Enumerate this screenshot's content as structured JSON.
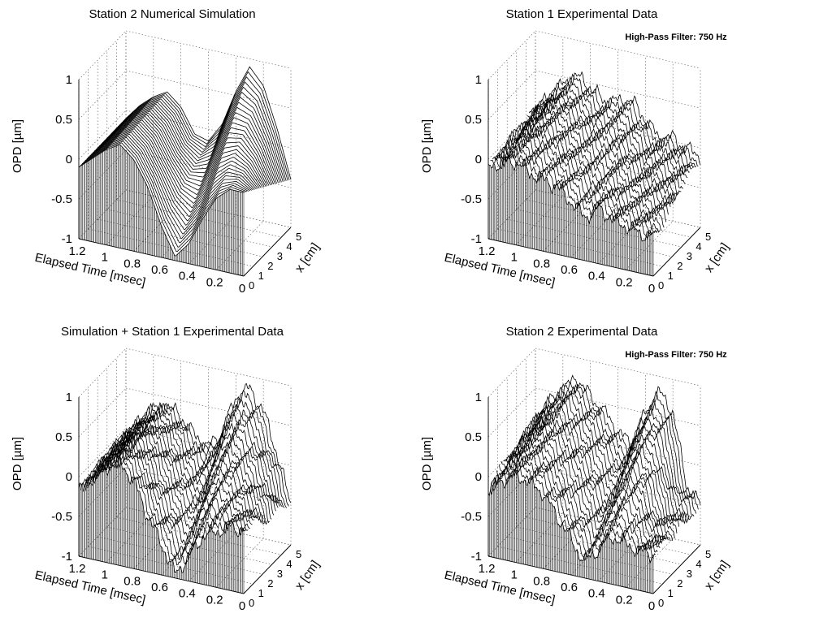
{
  "chart_data": [
    {
      "type": "surface",
      "title": "Station 2 Numerical Simulation",
      "note": "",
      "xlabel": "x [cm]",
      "ylabel": "Elapsed Time [msec]",
      "zlabel": "OPD [µm]",
      "x_ticks": [
        "0",
        "1",
        "2",
        "3",
        "4",
        "5"
      ],
      "t_ticks": [
        "1.2",
        "1",
        "0.8",
        "0.6",
        "0.4",
        "0.2",
        "0"
      ],
      "z_ticks": [
        "-1",
        "-0.5",
        "0",
        "0.5",
        "1"
      ],
      "xlim": [
        0,
        5
      ],
      "tlim": [
        0,
        1.2
      ],
      "zlim": [
        -1,
        1
      ],
      "kind": "simulation",
      "t": [
        1.2,
        1.1,
        1.0,
        0.9,
        0.8,
        0.7,
        0.6,
        0.5,
        0.4,
        0.3,
        0.2,
        0.1,
        0.0
      ],
      "z_front": [
        -0.1,
        0.05,
        0.2,
        0.3,
        0.15,
        -0.15,
        -0.6,
        -0.95,
        -0.75,
        -0.4,
        -0.1,
        0.05,
        0.05
      ],
      "z_back": [
        -0.1,
        0.1,
        0.25,
        0.35,
        0.2,
        -0.1,
        -0.15,
        0.1,
        0.55,
        0.9,
        0.7,
        0.2,
        -0.4
      ]
    },
    {
      "type": "surface",
      "title": "Station 1 Experimental Data",
      "note": "High-Pass Filter:  750 Hz",
      "xlabel": "x [cm]",
      "ylabel": "Elapsed Time [msec]",
      "zlabel": "OPD [µm]",
      "x_ticks": [
        "0",
        "1",
        "2",
        "3",
        "4",
        "5"
      ],
      "t_ticks": [
        "1.2",
        "1",
        "0.8",
        "0.6",
        "0.4",
        "0.2",
        "0"
      ],
      "z_ticks": [
        "-1",
        "-0.5",
        "0",
        "0.5",
        "1"
      ],
      "xlim": [
        0,
        5
      ],
      "tlim": [
        0,
        1.2
      ],
      "zlim": [
        -1,
        1
      ],
      "kind": "experimental",
      "t": [
        1.2,
        1.1,
        1.0,
        0.9,
        0.8,
        0.7,
        0.6,
        0.5,
        0.4,
        0.3,
        0.2,
        0.1,
        0.0
      ],
      "z_front": [
        -0.1,
        0.0,
        0.05,
        -0.05,
        -0.1,
        -0.15,
        -0.3,
        -0.45,
        -0.3,
        -0.4,
        -0.45,
        -0.5,
        -0.5
      ],
      "z_back": [
        0.0,
        0.2,
        0.4,
        0.55,
        0.45,
        0.3,
        0.35,
        0.4,
        0.2,
        0.0,
        0.05,
        -0.05,
        -0.1
      ]
    },
    {
      "type": "surface",
      "title": "Simulation + Station 1 Experimental Data",
      "note": "",
      "xlabel": "x [cm]",
      "ylabel": "Elapsed Time [msec]",
      "zlabel": "OPD [µm]",
      "x_ticks": [
        "0",
        "1",
        "2",
        "3",
        "4",
        "5"
      ],
      "t_ticks": [
        "1.2",
        "1",
        "0.8",
        "0.6",
        "0.4",
        "0.2",
        "0"
      ],
      "z_ticks": [
        "-1",
        "-0.5",
        "0",
        "0.5",
        "1"
      ],
      "xlim": [
        0,
        5
      ],
      "tlim": [
        0,
        1.2
      ],
      "zlim": [
        -1,
        1
      ],
      "kind": "experimental",
      "t": [
        1.2,
        1.1,
        1.0,
        0.9,
        0.8,
        0.7,
        0.6,
        0.5,
        0.4,
        0.3,
        0.2,
        0.1,
        0.0
      ],
      "z_front": [
        -0.2,
        0.05,
        0.2,
        0.3,
        0.1,
        -0.3,
        -0.6,
        -0.95,
        -0.7,
        -0.4,
        -0.3,
        -0.2,
        -0.2
      ],
      "z_back": [
        -0.1,
        0.1,
        0.3,
        0.4,
        0.3,
        0.1,
        0.0,
        0.2,
        0.7,
        0.85,
        0.6,
        0.1,
        -0.5
      ]
    },
    {
      "type": "surface",
      "title": "Station 2 Experimental Data",
      "note": "High-Pass Filter:  750 Hz",
      "xlabel": "x [cm]",
      "ylabel": "Elapsed Time [msec]",
      "zlabel": "OPD [µm]",
      "x_ticks": [
        "0",
        "1",
        "2",
        "3",
        "4",
        "5"
      ],
      "t_ticks": [
        "1.2",
        "1",
        "0.8",
        "0.6",
        "0.4",
        "0.2",
        "0"
      ],
      "z_ticks": [
        "-1",
        "-0.5",
        "0",
        "0.5",
        "1"
      ],
      "xlim": [
        0,
        5
      ],
      "tlim": [
        0,
        1.2
      ],
      "zlim": [
        -1,
        1
      ],
      "kind": "experimental",
      "t": [
        1.2,
        1.1,
        1.0,
        0.9,
        0.8,
        0.7,
        0.6,
        0.5,
        0.4,
        0.3,
        0.2,
        0.1,
        0.0
      ],
      "z_front": [
        -0.15,
        0.0,
        0.1,
        0.05,
        -0.05,
        -0.3,
        -0.55,
        -0.8,
        -0.6,
        -0.4,
        -0.45,
        -0.5,
        -0.5
      ],
      "z_back": [
        0.1,
        0.35,
        0.55,
        0.75,
        0.55,
        0.4,
        0.2,
        0.05,
        0.5,
        0.8,
        0.6,
        -0.3,
        -0.5
      ]
    }
  ]
}
